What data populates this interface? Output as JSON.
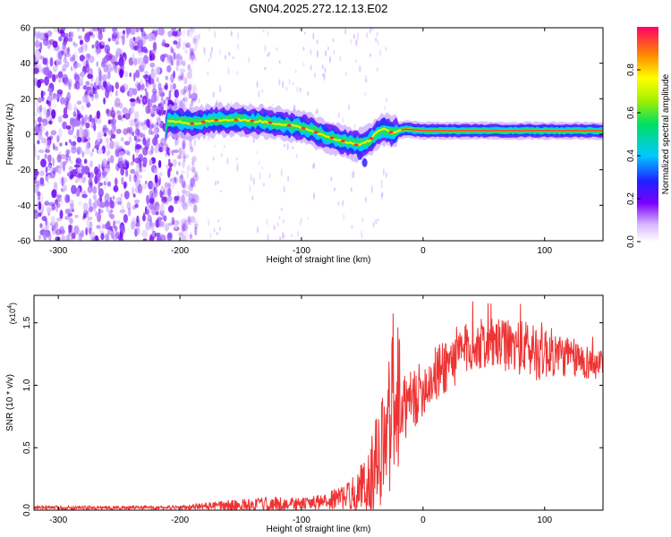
{
  "figure": {
    "title": "GN04.2025.272.12.13.E02"
  },
  "chart_data": [
    {
      "type": "heatmap",
      "title": "GN04.2025.272.12.13.E02",
      "xlabel": "Height of straight line (km)",
      "ylabel": "Frequency (Hz)",
      "xlim": [
        -320,
        148
      ],
      "ylim": [
        -60,
        60
      ],
      "xticks": [
        -300,
        -200,
        -100,
        0,
        100
      ],
      "yticks": [
        -60,
        -40,
        -20,
        0,
        20,
        40,
        60
      ],
      "noise_region_x": [
        -320,
        -195
      ],
      "signal_track": [
        {
          "x": -210,
          "y": 8
        },
        {
          "x": -190,
          "y": 6
        },
        {
          "x": -170,
          "y": 8
        },
        {
          "x": -150,
          "y": 8
        },
        {
          "x": -130,
          "y": 7
        },
        {
          "x": -110,
          "y": 5
        },
        {
          "x": -95,
          "y": 3
        },
        {
          "x": -80,
          "y": -1
        },
        {
          "x": -65,
          "y": -4
        },
        {
          "x": -55,
          "y": -6
        },
        {
          "x": -45,
          "y": -4
        },
        {
          "x": -38,
          "y": 1
        },
        {
          "x": -32,
          "y": 3
        },
        {
          "x": -26,
          "y": 1
        },
        {
          "x": -20,
          "y": 2
        },
        {
          "x": -15,
          "y": 3
        },
        {
          "x": 0,
          "y": 2
        },
        {
          "x": 50,
          "y": 2
        },
        {
          "x": 100,
          "y": 2
        },
        {
          "x": 148,
          "y": 2
        }
      ],
      "colorbar": {
        "label": "Normalized spectral amplitude",
        "ticks": [
          "0.0",
          "0.2",
          "0.4",
          "0.6",
          "0.8"
        ],
        "range": [
          0,
          1
        ]
      }
    },
    {
      "type": "line",
      "xlabel": "Height of straight line (km)",
      "ylabel": "SNR (10 * v/v)",
      "multiplier": "(x10",
      "multiplier_exp": "4",
      "multiplier_close": ")",
      "xlim": [
        -320,
        148
      ],
      "ylim": [
        0,
        1.72
      ],
      "xticks": [
        -300,
        -200,
        -100,
        0,
        100
      ],
      "yticks": [
        "0.0",
        "0.5",
        "1.0",
        "1.5"
      ],
      "color": "#ee3333",
      "envelope": [
        {
          "x": -320,
          "base": 0.02,
          "amp": 0.015
        },
        {
          "x": -200,
          "base": 0.02,
          "amp": 0.015
        },
        {
          "x": -180,
          "base": 0.03,
          "amp": 0.03
        },
        {
          "x": -150,
          "base": 0.04,
          "amp": 0.05
        },
        {
          "x": -120,
          "base": 0.05,
          "amp": 0.06
        },
        {
          "x": -100,
          "base": 0.05,
          "amp": 0.05
        },
        {
          "x": -80,
          "base": 0.07,
          "amp": 0.06
        },
        {
          "x": -60,
          "base": 0.12,
          "amp": 0.12
        },
        {
          "x": -45,
          "base": 0.22,
          "amp": 0.25
        },
        {
          "x": -35,
          "base": 0.45,
          "amp": 0.45
        },
        {
          "x": -25,
          "base": 0.65,
          "amp": 0.55
        },
        {
          "x": -15,
          "base": 0.8,
          "amp": 0.28
        },
        {
          "x": 0,
          "base": 0.98,
          "amp": 0.22
        },
        {
          "x": 20,
          "base": 1.18,
          "amp": 0.25
        },
        {
          "x": 40,
          "base": 1.32,
          "amp": 0.22
        },
        {
          "x": 60,
          "base": 1.33,
          "amp": 0.2
        },
        {
          "x": 80,
          "base": 1.3,
          "amp": 0.22
        },
        {
          "x": 95,
          "base": 1.28,
          "amp": 0.25
        },
        {
          "x": 110,
          "base": 1.25,
          "amp": 0.18
        },
        {
          "x": 130,
          "base": 1.2,
          "amp": 0.15
        },
        {
          "x": 148,
          "base": 1.15,
          "amp": 0.12
        }
      ]
    }
  ]
}
